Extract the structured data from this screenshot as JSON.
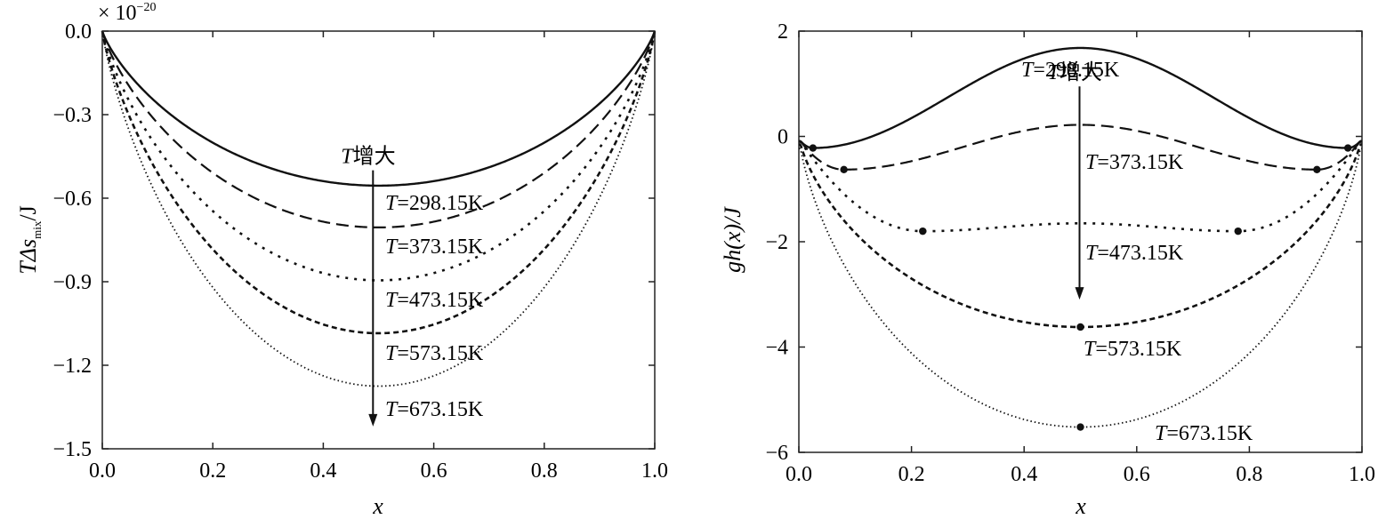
{
  "chart_data": [
    {
      "type": "line",
      "xlabel": "x",
      "ylabel_prefix": "TΔ",
      "ylabel_s": "s",
      "ylabel_sub": "mix",
      "ylabel_suffix": "/J",
      "multiplier_prefix": "× 10",
      "multiplier_exp": "−20",
      "xlim": [
        0,
        1.0
      ],
      "ylim": [
        -1.5,
        0.0
      ],
      "x_ticks": [
        "0.0",
        "0.2",
        "0.4",
        "0.6",
        "0.8",
        "1.0"
      ],
      "y_ticks": [
        "0.0",
        "-0.3",
        "-0.6",
        "-0.9",
        "-1.2",
        "-1.5"
      ],
      "series": [
        {
          "name": "T=298.15K",
          "T": 298.15,
          "min": -0.555
        },
        {
          "name": "T=373.15K",
          "T": 373.15,
          "min": -0.705
        },
        {
          "name": "T=473.15K",
          "T": 473.15,
          "min": -0.895
        },
        {
          "name": "T=573.15K",
          "T": 573.15,
          "min": -1.085
        },
        {
          "name": "T=673.15K",
          "T": 673.15,
          "min": -1.275
        }
      ],
      "arrow_label_T": "T",
      "arrow_label_text": "增大",
      "labels": [
        "T=298.15K",
        "T=373.15K",
        "T=473.15K",
        "T=573.15K",
        "T=673.15K"
      ],
      "arrow": {
        "x": 0.49,
        "y_from": -0.5,
        "y_to": -1.42
      }
    },
    {
      "type": "line",
      "xlabel": "x",
      "ylabel": "gh(x)/J",
      "xlim": [
        0,
        1.0
      ],
      "ylim": [
        -6,
        2
      ],
      "x_ticks": [
        "0.0",
        "0.2",
        "0.4",
        "0.6",
        "0.8",
        "1.0"
      ],
      "y_ticks": [
        "2",
        "0",
        "-2",
        "-4",
        "-6"
      ],
      "series": [
        {
          "name": "T=298.15K",
          "T": 298.15,
          "center": 1.68,
          "min_x": 0.025,
          "min_y": -0.22
        },
        {
          "name": "T=373.15K",
          "T": 373.15,
          "center": 0.22,
          "min_x": 0.08,
          "min_y": -0.63
        },
        {
          "name": "T=473.15K",
          "T": 473.15,
          "center": -1.65,
          "min_x": 0.22,
          "min_y": -1.8
        },
        {
          "name": "T=573.15K",
          "T": 573.15,
          "center": -3.62,
          "min_x": 0.5,
          "min_y": -3.62
        },
        {
          "name": "T=673.15K",
          "T": 673.15,
          "center": -5.52,
          "min_x": 0.5,
          "min_y": -5.52
        }
      ],
      "arrow_label_T": "T",
      "arrow_label_text": "增大",
      "labels": [
        "T=298.15K",
        "T=373.15K",
        "T=473.15K",
        "T=573.15K",
        "T=673.15K"
      ],
      "arrow": {
        "x": 0.5,
        "y_from": 0.95,
        "y_to": -3.1
      }
    }
  ]
}
